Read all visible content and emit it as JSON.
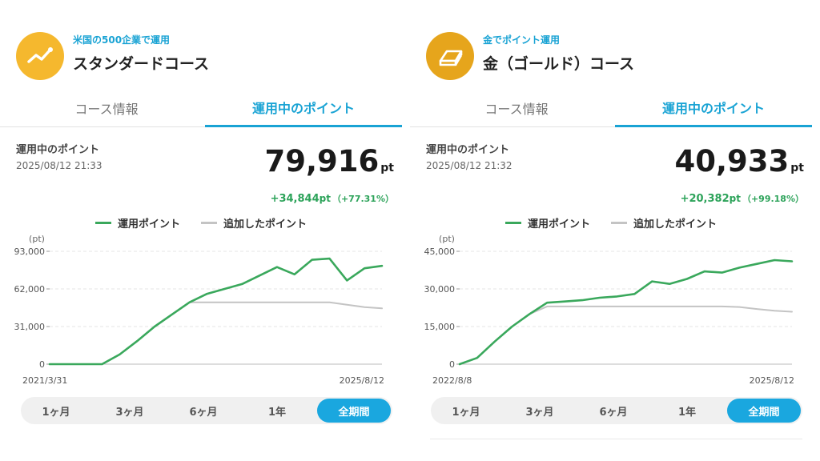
{
  "panels": [
    {
      "subtitle": "米国の500企業で運用",
      "title": "スタンダードコース",
      "icon": "chart-trend-icon",
      "icon_color": "#f5b82e",
      "tabs": [
        "コース情報",
        "運用中のポイント"
      ],
      "active_tab": 1,
      "label": "運用中のポイント",
      "date": "2025/08/12 21:33",
      "value": "79,916",
      "value_unit": "pt",
      "change": "+34,844",
      "change_unit": "pt",
      "change_pct": "（+77.31%）",
      "legend": [
        "運用ポイント",
        "追加したポイント"
      ],
      "ranges": [
        "1ヶ月",
        "3ヶ月",
        "6ヶ月",
        "1年",
        "全期間"
      ],
      "active_range": 4,
      "chart_data": {
        "type": "line",
        "y_unit": "(pt)",
        "ylim": [
          0,
          93000
        ],
        "yticks": [
          0,
          31000,
          62000,
          93000
        ],
        "ytick_labels": [
          "0",
          "31,000",
          "62,000",
          "93,000"
        ],
        "xlabels": [
          "2021/3/31",
          "2025/8/12"
        ],
        "series": [
          {
            "name": "運用ポイント",
            "color": "#3aa85c",
            "values": [
              0,
              0,
              0,
              0,
              8000,
              19000,
              31000,
              41000,
              51000,
              58000,
              62000,
              66000,
              73000,
              80000,
              74000,
              86000,
              87000,
              69000,
              79000,
              81000
            ]
          },
          {
            "name": "追加したポイント",
            "color": "#c4c4c4",
            "values": [
              null,
              null,
              null,
              null,
              null,
              null,
              null,
              null,
              51000,
              51000,
              51000,
              51000,
              51000,
              51000,
              51000,
              51000,
              51000,
              49000,
              47000,
              46000
            ]
          }
        ]
      }
    },
    {
      "subtitle": "金でポイント運用",
      "title": "金（ゴールド）コース",
      "icon": "gold-bar-icon",
      "icon_color": "#e6a51c",
      "tabs": [
        "コース情報",
        "運用中のポイント"
      ],
      "active_tab": 1,
      "label": "運用中のポイント",
      "date": "2025/08/12 21:32",
      "value": "40,933",
      "value_unit": "pt",
      "change": "+20,382",
      "change_unit": "pt",
      "change_pct": "（+99.18%）",
      "legend": [
        "運用ポイント",
        "追加したポイント"
      ],
      "ranges": [
        "1ヶ月",
        "3ヶ月",
        "6ヶ月",
        "1年",
        "全期間"
      ],
      "active_range": 4,
      "chart_data": {
        "type": "line",
        "y_unit": "(pt)",
        "ylim": [
          0,
          45000
        ],
        "yticks": [
          0,
          15000,
          30000,
          45000
        ],
        "ytick_labels": [
          "0",
          "15,000",
          "30,000",
          "45,000"
        ],
        "xlabels": [
          "2022/8/8",
          "2025/8/12"
        ],
        "series": [
          {
            "name": "運用ポイント",
            "color": "#3aa85c",
            "values": [
              0,
              2500,
              9000,
              15000,
              20000,
              24500,
              25000,
              25500,
              26500,
              27000,
              28000,
              33000,
              32000,
              34000,
              37000,
              36500,
              38500,
              40000,
              41500,
              41000
            ]
          },
          {
            "name": "追加したポイント",
            "color": "#c4c4c4",
            "values": [
              0,
              2500,
              9000,
              15000,
              20000,
              23000,
              23000,
              23000,
              23000,
              23000,
              23000,
              23000,
              23000,
              23000,
              23000,
              23000,
              22800,
              22000,
              21300,
              20900
            ]
          }
        ]
      }
    }
  ]
}
